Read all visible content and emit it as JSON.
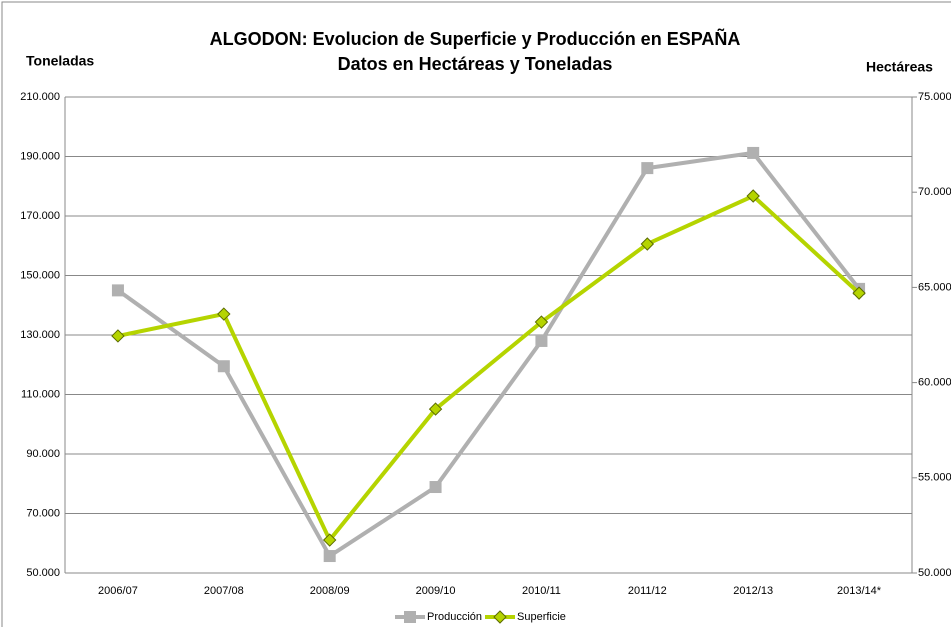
{
  "chart_data": {
    "type": "line",
    "title": "ALGODON: Evolucion de Superficie y Producción en ESPAÑA",
    "subtitle": "Datos en Hectáreas y Toneladas",
    "y_label": "Toneladas",
    "y2_label": "Hectáreas",
    "categories": [
      "2006/07",
      "2007/08",
      "2008/09",
      "2009/10",
      "2010/11",
      "2011/12",
      "2012/13",
      "2013/14*"
    ],
    "series": [
      {
        "name": "Producción",
        "color": "#b0b0b0",
        "marker": "square",
        "values": [
          145000,
          119500,
          55700,
          78900,
          128000,
          186100,
          191200,
          145500
        ]
      },
      {
        "name": "Superficie",
        "color": "#b5d400",
        "marker": "diamond",
        "axis": "y2",
        "values": [
          62450,
          63600,
          51730,
          58610,
          63180,
          67280,
          69800,
          64700
        ]
      }
    ],
    "ylim": [
      50000,
      210000
    ],
    "yticks": [
      {
        "value": 50000,
        "label": "50.000"
      },
      {
        "value": 70000,
        "label": "70.000"
      },
      {
        "value": 90000,
        "label": "90.000"
      },
      {
        "value": 110000,
        "label": "110.000"
      },
      {
        "value": 130000,
        "label": "130.000"
      },
      {
        "value": 150000,
        "label": "150.000"
      },
      {
        "value": 170000,
        "label": "170.000"
      },
      {
        "value": 190000,
        "label": "190.000"
      },
      {
        "value": 210000,
        "label": "210.000"
      }
    ],
    "y2lim": [
      50000,
      75000
    ],
    "y2ticks": [
      {
        "value": 50000,
        "label": "50.000"
      },
      {
        "value": 55000,
        "label": "55.000"
      },
      {
        "value": 60000,
        "label": "60.000"
      },
      {
        "value": 65000,
        "label": "65.000"
      },
      {
        "value": 70000,
        "label": "70.000"
      },
      {
        "value": 75000,
        "label": "75.000"
      }
    ],
    "grid": true,
    "legend": "bottom"
  }
}
